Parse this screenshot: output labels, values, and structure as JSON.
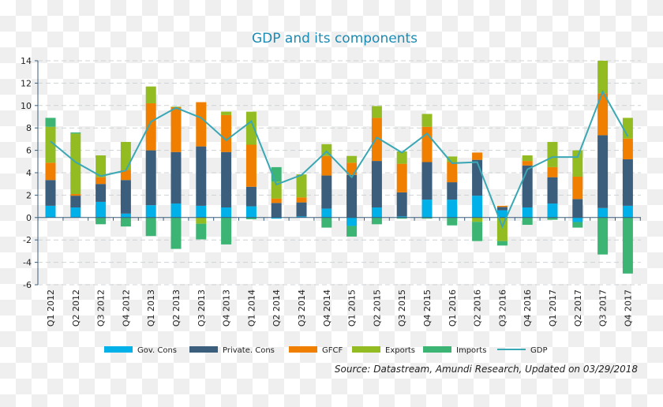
{
  "chart_data": {
    "type": "bar",
    "stacked": true,
    "title": "GDP and its components",
    "xlabel": "",
    "ylabel": "",
    "ylim": [
      -6,
      14
    ],
    "yticks": [
      -6,
      -4,
      -2,
      0,
      2,
      4,
      6,
      8,
      10,
      12,
      14
    ],
    "grid": true,
    "legend_placement": "bottom",
    "categories": [
      "Q1 2012",
      "Q2 2012",
      "Q3 2012",
      "Q4 2012",
      "Q1 2013",
      "Q2 2013",
      "Q3 2013",
      "Q4 2013",
      "Q1 2014",
      "Q2 2014",
      "Q3 2014",
      "Q4 2014",
      "Q1 2015",
      "Q2 2015",
      "Q3 2015",
      "Q4 2015",
      "Q1 2016",
      "Q2 2016",
      "Q3 2016",
      "Q4 2016",
      "Q1 2017",
      "Q2 2017",
      "Q3 2017",
      "Q4 2017"
    ],
    "series": [
      {
        "name": "Gov. Cons",
        "type": "bar",
        "color": "#00b0e8",
        "values": [
          1.05,
          0.9,
          1.4,
          0.35,
          1.1,
          1.25,
          1.05,
          0.9,
          1.0,
          -0.1,
          0.1,
          0.8,
          -0.75,
          0.9,
          0.1,
          1.6,
          1.6,
          1.95,
          0.65,
          0.9,
          1.25,
          -0.4,
          0.85,
          1.05
        ]
      },
      {
        "name": "Private. Cons",
        "type": "bar",
        "color": "#3a5e7b",
        "values": [
          2.3,
          1.05,
          1.6,
          3.0,
          4.9,
          4.6,
          5.3,
          4.95,
          1.75,
          1.3,
          1.25,
          2.95,
          3.8,
          4.15,
          2.15,
          3.35,
          1.55,
          3.2,
          0.3,
          3.75,
          2.35,
          1.65,
          6.5,
          4.15
        ]
      },
      {
        "name": "GFCF",
        "type": "bar",
        "color": "#f07f00",
        "values": [
          1.55,
          0.15,
          0.6,
          0.9,
          4.2,
          4.0,
          3.95,
          3.3,
          3.75,
          0.4,
          0.45,
          1.75,
          1.1,
          3.85,
          2.55,
          3.15,
          1.8,
          0.65,
          0.1,
          0.4,
          0.9,
          2.0,
          3.75,
          1.85
        ]
      },
      {
        "name": "Exports",
        "type": "bar",
        "color": "#93bb22",
        "values": [
          3.2,
          5.4,
          1.95,
          2.5,
          1.5,
          0.05,
          -0.55,
          0.3,
          2.95,
          1.5,
          2.05,
          1.05,
          0.6,
          1.05,
          1.1,
          1.15,
          0.5,
          -0.38,
          -2.1,
          0.5,
          2.25,
          2.35,
          2.9,
          1.85
        ]
      },
      {
        "name": "Imports",
        "type": "bar",
        "color": "#3cb474",
        "values": [
          0.8,
          0.1,
          -0.6,
          -0.8,
          -1.65,
          -2.8,
          -1.4,
          -2.4,
          -0.15,
          1.3,
          0,
          -0.9,
          -0.95,
          -0.6,
          -0.1,
          -0.1,
          -0.7,
          -1.72,
          -0.4,
          -0.65,
          -0.2,
          -0.5,
          -3.3,
          -5.0
        ]
      },
      {
        "name": "GDP",
        "type": "line",
        "color": "#3aa8b4",
        "values": [
          6.8,
          4.95,
          3.7,
          4.2,
          8.55,
          9.8,
          8.9,
          6.9,
          8.6,
          2.95,
          3.8,
          5.9,
          3.6,
          7.15,
          5.8,
          7.5,
          4.85,
          4.95,
          -0.8,
          4.3,
          5.4,
          5.4,
          11.25,
          7.25
        ]
      }
    ],
    "annotations": [
      "Source: Datastream, Amundi Research, Updated on 03/29/2018"
    ]
  }
}
